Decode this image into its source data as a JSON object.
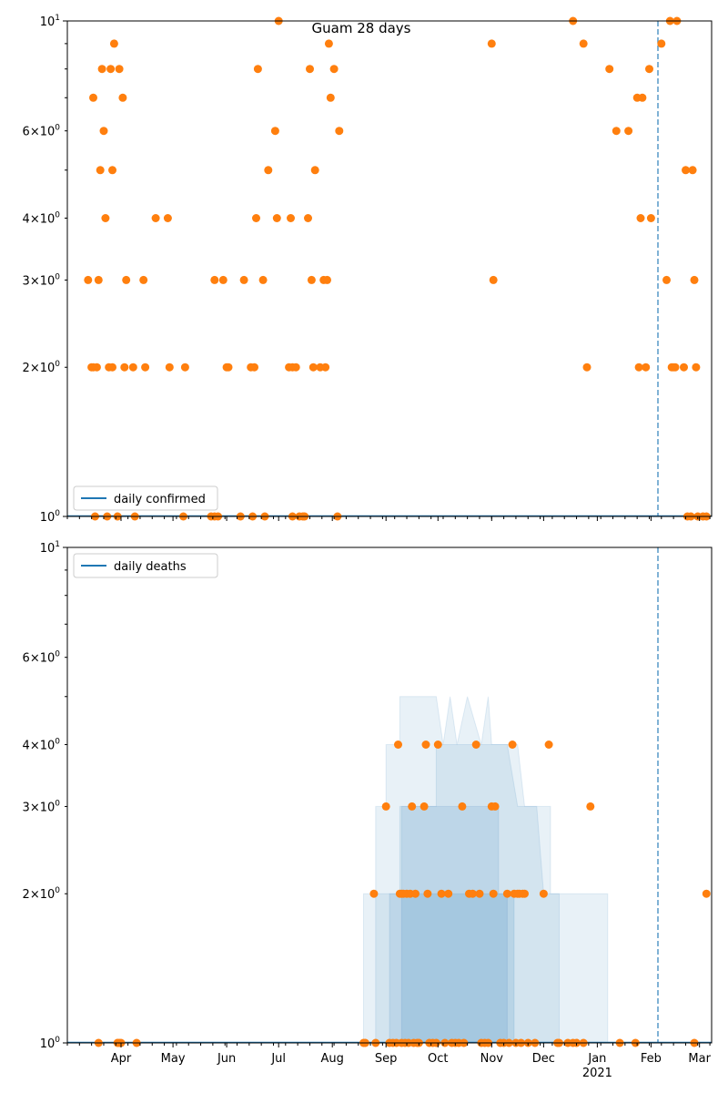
{
  "title": "Guam 28 days",
  "colors": {
    "points": "#ff7f0e",
    "line": "#1f77b4",
    "band": "#1f77b4",
    "marker_line": "#1f77b4"
  },
  "chart_data": [
    {
      "type": "scatter",
      "yscale": "log",
      "ylim": [
        1,
        10
      ],
      "xlim": [
        "2020-03-01",
        "2021-03-08"
      ],
      "grid": false,
      "legend": {
        "entries": [
          "daily confirmed"
        ],
        "placement": "lower-left"
      },
      "vline_date": "2021-02-05",
      "yticks": [
        {
          "value": 1,
          "label": "10",
          "exp": "0"
        },
        {
          "value": 2,
          "label": "2×10",
          "exp": "0"
        },
        {
          "value": 3,
          "label": "3×10",
          "exp": "0"
        },
        {
          "value": 4,
          "label": "4×10",
          "exp": "0"
        },
        {
          "value": 6,
          "label": "6×10",
          "exp": "0"
        },
        {
          "value": 10,
          "label": "10",
          "exp": "1"
        }
      ],
      "bands": [],
      "points": [
        [
          "2020-03-13",
          3
        ],
        [
          "2020-03-15",
          2
        ],
        [
          "2020-03-16",
          7
        ],
        [
          "2020-03-16",
          2
        ],
        [
          "2020-03-17",
          1
        ],
        [
          "2020-03-18",
          2
        ],
        [
          "2020-03-19",
          3
        ],
        [
          "2020-03-20",
          5
        ],
        [
          "2020-03-21",
          8
        ],
        [
          "2020-03-22",
          6
        ],
        [
          "2020-03-23",
          4
        ],
        [
          "2020-03-24",
          1
        ],
        [
          "2020-03-25",
          2
        ],
        [
          "2020-03-26",
          8
        ],
        [
          "2020-03-27",
          5
        ],
        [
          "2020-03-27",
          2
        ],
        [
          "2020-03-28",
          9
        ],
        [
          "2020-03-30",
          1
        ],
        [
          "2020-03-31",
          8
        ],
        [
          "2020-04-02",
          7
        ],
        [
          "2020-04-03",
          2
        ],
        [
          "2020-04-04",
          3
        ],
        [
          "2020-04-08",
          2
        ],
        [
          "2020-04-09",
          1
        ],
        [
          "2020-04-14",
          3
        ],
        [
          "2020-04-15",
          2
        ],
        [
          "2020-04-21",
          4
        ],
        [
          "2020-04-28",
          4
        ],
        [
          "2020-04-29",
          2
        ],
        [
          "2020-05-07",
          1
        ],
        [
          "2020-05-08",
          2
        ],
        [
          "2020-05-23",
          1
        ],
        [
          "2020-05-25",
          3
        ],
        [
          "2020-05-25",
          1
        ],
        [
          "2020-05-27",
          1
        ],
        [
          "2020-05-30",
          3
        ],
        [
          "2020-06-01",
          2
        ],
        [
          "2020-06-02",
          2
        ],
        [
          "2020-06-09",
          1
        ],
        [
          "2020-06-11",
          3
        ],
        [
          "2020-06-15",
          2
        ],
        [
          "2020-06-16",
          1
        ],
        [
          "2020-06-17",
          2
        ],
        [
          "2020-06-18",
          4
        ],
        [
          "2020-06-19",
          8
        ],
        [
          "2020-06-22",
          3
        ],
        [
          "2020-06-23",
          1
        ],
        [
          "2020-06-25",
          5
        ],
        [
          "2020-06-29",
          6
        ],
        [
          "2020-06-30",
          4
        ],
        [
          "2020-07-01",
          10
        ],
        [
          "2020-07-07",
          2
        ],
        [
          "2020-07-08",
          4
        ],
        [
          "2020-07-09",
          2
        ],
        [
          "2020-07-09",
          1
        ],
        [
          "2020-07-11",
          2
        ],
        [
          "2020-07-13",
          1
        ],
        [
          "2020-07-15",
          1
        ],
        [
          "2020-07-16",
          1
        ],
        [
          "2020-07-18",
          4
        ],
        [
          "2020-07-19",
          8
        ],
        [
          "2020-07-20",
          3
        ],
        [
          "2020-07-21",
          2
        ],
        [
          "2020-07-22",
          5
        ],
        [
          "2020-07-25",
          2
        ],
        [
          "2020-07-27",
          3
        ],
        [
          "2020-07-28",
          2
        ],
        [
          "2020-07-29",
          3
        ],
        [
          "2020-07-30",
          9
        ],
        [
          "2020-07-31",
          7
        ],
        [
          "2020-08-02",
          8
        ],
        [
          "2020-08-04",
          1
        ],
        [
          "2020-08-05",
          6
        ],
        [
          "2020-11-01",
          9
        ],
        [
          "2020-11-02",
          3
        ],
        [
          "2020-12-18",
          10
        ],
        [
          "2020-12-24",
          9
        ],
        [
          "2020-12-26",
          2
        ],
        [
          "2021-01-08",
          8
        ],
        [
          "2021-01-12",
          6
        ],
        [
          "2021-01-19",
          6
        ],
        [
          "2021-01-24",
          7
        ],
        [
          "2021-01-25",
          2
        ],
        [
          "2021-01-26",
          4
        ],
        [
          "2021-01-27",
          7
        ],
        [
          "2021-01-29",
          2
        ],
        [
          "2021-01-31",
          8
        ],
        [
          "2021-02-01",
          4
        ],
        [
          "2021-02-07",
          9
        ],
        [
          "2021-02-10",
          3
        ],
        [
          "2021-02-12",
          10
        ],
        [
          "2021-02-13",
          2
        ],
        [
          "2021-02-14",
          2
        ],
        [
          "2021-02-15",
          2
        ],
        [
          "2021-02-16",
          10
        ],
        [
          "2021-02-20",
          2
        ],
        [
          "2021-02-21",
          5
        ],
        [
          "2021-02-22",
          1
        ],
        [
          "2021-02-24",
          1
        ],
        [
          "2021-02-25",
          5
        ],
        [
          "2021-02-26",
          3
        ],
        [
          "2021-02-27",
          2
        ],
        [
          "2021-02-28",
          1
        ],
        [
          "2021-03-03",
          1
        ],
        [
          "2021-03-05",
          1
        ]
      ]
    },
    {
      "type": "scatter",
      "yscale": "log",
      "ylim": [
        1,
        10
      ],
      "xlim": [
        "2020-03-01",
        "2021-03-08"
      ],
      "grid": false,
      "legend": {
        "entries": [
          "daily deaths"
        ],
        "placement": "upper-left"
      },
      "vline_date": "2021-02-05",
      "yticks": [
        {
          "value": 1,
          "label": "10",
          "exp": "0"
        },
        {
          "value": 2,
          "label": "2×10",
          "exp": "0"
        },
        {
          "value": 3,
          "label": "3×10",
          "exp": "0"
        },
        {
          "value": 4,
          "label": "4×10",
          "exp": "0"
        },
        {
          "value": 6,
          "label": "6×10",
          "exp": "0"
        },
        {
          "value": 10,
          "label": "10",
          "exp": "1"
        }
      ],
      "xticks": [
        {
          "date": "2020-04-01",
          "label": "Apr"
        },
        {
          "date": "2020-05-01",
          "label": "May"
        },
        {
          "date": "2020-06-01",
          "label": "Jun"
        },
        {
          "date": "2020-07-01",
          "label": "Jul"
        },
        {
          "date": "2020-08-01",
          "label": "Aug"
        },
        {
          "date": "2020-09-01",
          "label": "Sep"
        },
        {
          "date": "2020-10-01",
          "label": "Oct"
        },
        {
          "date": "2020-11-01",
          "label": "Nov"
        },
        {
          "date": "2020-12-01",
          "label": "Dec"
        },
        {
          "date": "2021-01-01",
          "label": "Jan",
          "sublabel": "2021"
        },
        {
          "date": "2021-02-01",
          "label": "Feb"
        },
        {
          "date": "2021-03-01",
          "label": "Mar"
        }
      ],
      "bands": [
        {
          "opacity": 0.1,
          "points": [
            [
              "2020-08-19",
              1
            ],
            [
              "2020-08-19",
              2
            ],
            [
              "2020-08-26",
              2
            ],
            [
              "2020-08-26",
              3
            ],
            [
              "2020-09-01",
              3
            ],
            [
              "2020-09-01",
              4
            ],
            [
              "2020-09-09",
              4
            ],
            [
              "2020-09-09",
              5
            ],
            [
              "2020-09-30",
              5
            ],
            [
              "2020-10-04",
              4
            ],
            [
              "2020-10-08",
              5
            ],
            [
              "2020-10-12",
              4
            ],
            [
              "2020-10-18",
              5
            ],
            [
              "2020-10-26",
              4
            ],
            [
              "2020-10-30",
              5
            ],
            [
              "2020-11-01",
              4
            ],
            [
              "2020-11-16",
              4
            ],
            [
              "2020-11-20",
              3
            ],
            [
              "2020-11-27",
              3
            ],
            [
              "2020-12-01",
              2
            ],
            [
              "2021-01-07",
              2
            ],
            [
              "2021-01-07",
              1
            ]
          ]
        },
        {
          "opacity": 0.1,
          "points": [
            [
              "2020-08-26",
              1
            ],
            [
              "2020-08-26",
              2
            ],
            [
              "2020-09-09",
              2
            ],
            [
              "2020-09-09",
              3
            ],
            [
              "2020-09-30",
              3
            ],
            [
              "2020-09-30",
              4
            ],
            [
              "2020-11-10",
              4
            ],
            [
              "2020-11-16",
              3
            ],
            [
              "2020-12-05",
              3
            ],
            [
              "2020-12-05",
              2
            ],
            [
              "2020-12-10",
              2
            ],
            [
              "2020-12-10",
              1
            ]
          ]
        },
        {
          "opacity": 0.12,
          "points": [
            [
              "2020-09-03",
              1
            ],
            [
              "2020-09-03",
              2
            ],
            [
              "2020-09-10",
              2
            ],
            [
              "2020-09-10",
              3
            ],
            [
              "2020-11-05",
              3
            ],
            [
              "2020-11-05",
              2
            ],
            [
              "2020-11-10",
              2
            ],
            [
              "2020-11-10",
              1
            ]
          ]
        },
        {
          "opacity": 0.15,
          "points": [
            [
              "2020-09-10",
              1
            ],
            [
              "2020-09-10",
              2
            ],
            [
              "2020-11-14",
              2
            ],
            [
              "2020-11-14",
              1
            ]
          ]
        }
      ],
      "points": [
        [
          "2020-03-19",
          1
        ],
        [
          "2020-03-30",
          1
        ],
        [
          "2020-03-31",
          1
        ],
        [
          "2020-04-01",
          1
        ],
        [
          "2020-04-10",
          1
        ],
        [
          "2020-08-19",
          1
        ],
        [
          "2020-08-20",
          1
        ],
        [
          "2020-08-25",
          2
        ],
        [
          "2020-08-26",
          1
        ],
        [
          "2020-09-01",
          3
        ],
        [
          "2020-09-03",
          1
        ],
        [
          "2020-09-05",
          1
        ],
        [
          "2020-09-07",
          1
        ],
        [
          "2020-09-08",
          4
        ],
        [
          "2020-09-09",
          2
        ],
        [
          "2020-09-10",
          1
        ],
        [
          "2020-09-10",
          2
        ],
        [
          "2020-09-11",
          2
        ],
        [
          "2020-09-12",
          1
        ],
        [
          "2020-09-13",
          2
        ],
        [
          "2020-09-14",
          1
        ],
        [
          "2020-09-15",
          2
        ],
        [
          "2020-09-16",
          3
        ],
        [
          "2020-09-17",
          1
        ],
        [
          "2020-09-18",
          2
        ],
        [
          "2020-09-19",
          1
        ],
        [
          "2020-09-20",
          1
        ],
        [
          "2020-09-23",
          3
        ],
        [
          "2020-09-24",
          4
        ],
        [
          "2020-09-25",
          2
        ],
        [
          "2020-09-26",
          1
        ],
        [
          "2020-09-28",
          1
        ],
        [
          "2020-09-30",
          1
        ],
        [
          "2020-10-01",
          4
        ],
        [
          "2020-10-03",
          2
        ],
        [
          "2020-10-05",
          1
        ],
        [
          "2020-10-07",
          2
        ],
        [
          "2020-10-09",
          1
        ],
        [
          "2020-10-11",
          1
        ],
        [
          "2020-10-13",
          1
        ],
        [
          "2020-10-15",
          3
        ],
        [
          "2020-10-16",
          1
        ],
        [
          "2020-10-19",
          2
        ],
        [
          "2020-10-21",
          2
        ],
        [
          "2020-10-23",
          4
        ],
        [
          "2020-10-25",
          2
        ],
        [
          "2020-10-26",
          1
        ],
        [
          "2020-10-28",
          1
        ],
        [
          "2020-10-30",
          1
        ],
        [
          "2020-11-01",
          3
        ],
        [
          "2020-11-02",
          2
        ],
        [
          "2020-11-03",
          3
        ],
        [
          "2020-11-06",
          1
        ],
        [
          "2020-11-08",
          1
        ],
        [
          "2020-11-10",
          2
        ],
        [
          "2020-11-11",
          1
        ],
        [
          "2020-11-13",
          4
        ],
        [
          "2020-11-14",
          2
        ],
        [
          "2020-11-15",
          1
        ],
        [
          "2020-11-16",
          2
        ],
        [
          "2020-11-17",
          2
        ],
        [
          "2020-11-18",
          1
        ],
        [
          "2020-11-19",
          2
        ],
        [
          "2020-11-20",
          2
        ],
        [
          "2020-11-22",
          1
        ],
        [
          "2020-11-26",
          1
        ],
        [
          "2020-12-01",
          2
        ],
        [
          "2020-12-04",
          4
        ],
        [
          "2020-12-09",
          1
        ],
        [
          "2020-12-10",
          1
        ],
        [
          "2020-12-15",
          1
        ],
        [
          "2020-12-18",
          1
        ],
        [
          "2020-12-20",
          1
        ],
        [
          "2020-12-24",
          1
        ],
        [
          "2020-12-28",
          3
        ],
        [
          "2021-01-14",
          1
        ],
        [
          "2021-01-23",
          1
        ],
        [
          "2021-02-26",
          1
        ],
        [
          "2021-03-05",
          2
        ]
      ]
    }
  ]
}
